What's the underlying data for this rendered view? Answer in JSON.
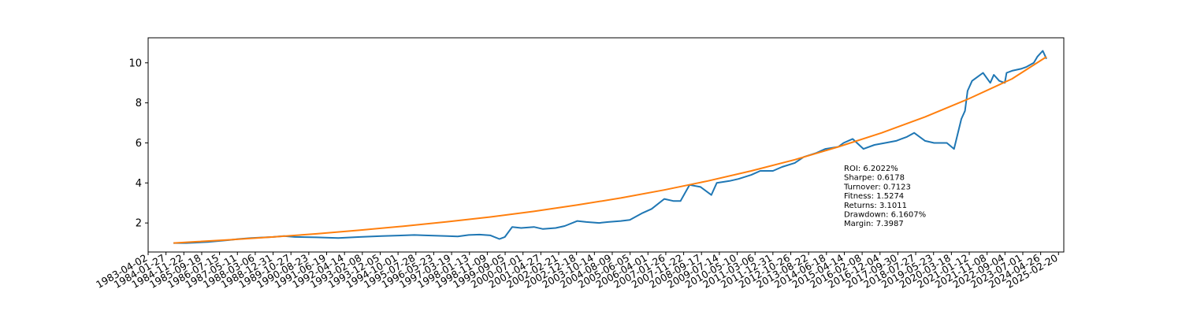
{
  "chart_data": {
    "type": "line",
    "xlim": [
      "1983-04-02",
      "2025-05-20"
    ],
    "ylim": [
      0.55,
      11.25
    ],
    "y_ticks": [
      2,
      4,
      6,
      8,
      10
    ],
    "x_ticks": [
      "1983-04-02",
      "1984-01-27",
      "1984-11-22",
      "1985-09-18",
      "1986-07-15",
      "1987-05-11",
      "1988-03-06",
      "1988-12-31",
      "1989-10-27",
      "1990-08-23",
      "1991-06-19",
      "1992-04-14",
      "1993-02-08",
      "1993-12-05",
      "1994-10-01",
      "1995-07-28",
      "1996-05-23",
      "1997-03-19",
      "1998-01-13",
      "1998-11-09",
      "1999-09-05",
      "2000-07-01",
      "2001-04-27",
      "2002-02-21",
      "2002-12-18",
      "2003-10-14",
      "2004-08-09",
      "2005-06-05",
      "2006-04-01",
      "2007-01-26",
      "2007-11-22",
      "2008-09-17",
      "2009-07-14",
      "2010-05-10",
      "2011-03-06",
      "2011-12-31",
      "2012-10-26",
      "2013-08-22",
      "2014-06-18",
      "2015-04-14",
      "2016-02-08",
      "2016-12-04",
      "2017-09-30",
      "2018-07-27",
      "2019-05-23",
      "2020-03-18",
      "2021-01-12",
      "2021-11-08",
      "2022-09-04",
      "2023-07-01",
      "2024-04-26",
      "2025-02-20"
    ],
    "grid": false,
    "series": [
      {
        "color": "#1f77b4",
        "x": [
          "1984-06-01",
          "1985-01-01",
          "1986-01-01",
          "1987-01-01",
          "1987-06-01",
          "1988-01-01",
          "1989-01-01",
          "1989-07-01",
          "1990-01-01",
          "1991-01-01",
          "1992-01-01",
          "1993-01-01",
          "1994-01-01",
          "1995-01-01",
          "1995-07-01",
          "1996-01-01",
          "1997-01-01",
          "1997-07-01",
          "1998-01-01",
          "1998-07-01",
          "1999-01-01",
          "1999-06-01",
          "1999-09-01",
          "2000-01-01",
          "2000-06-01",
          "2001-01-01",
          "2001-06-01",
          "2002-01-01",
          "2002-06-01",
          "2003-01-01",
          "2003-06-01",
          "2004-01-01",
          "2004-06-01",
          "2005-01-01",
          "2005-06-01",
          "2006-01-01",
          "2006-06-01",
          "2007-01-01",
          "2007-06-01",
          "2007-10-01",
          "2008-03-01",
          "2008-09-01",
          "2009-03-01",
          "2009-06-01",
          "2010-01-01",
          "2010-06-01",
          "2011-01-01",
          "2011-06-01",
          "2012-01-01",
          "2012-06-01",
          "2013-01-01",
          "2013-06-01",
          "2014-01-01",
          "2014-06-01",
          "2015-01-01",
          "2015-04-01",
          "2015-09-01",
          "2016-03-01",
          "2016-09-01",
          "2017-03-01",
          "2017-09-01",
          "2018-03-01",
          "2018-07-01",
          "2019-01-01",
          "2019-06-01",
          "2020-01-01",
          "2020-05-01",
          "2020-09-01",
          "2020-11-01",
          "2020-12-15",
          "2021-03-01",
          "2021-06-01",
          "2021-09-01",
          "2022-01-01",
          "2022-03-01",
          "2022-06-01",
          "2022-09-01",
          "2022-10-01",
          "2023-01-01",
          "2023-06-01",
          "2023-09-01",
          "2024-01-01",
          "2024-03-01",
          "2024-06-01",
          "2024-08-01"
        ],
        "y": [
          1.0,
          1.0,
          1.05,
          1.15,
          1.2,
          1.25,
          1.3,
          1.35,
          1.3,
          1.28,
          1.25,
          1.3,
          1.35,
          1.38,
          1.4,
          1.38,
          1.35,
          1.33,
          1.4,
          1.42,
          1.38,
          1.2,
          1.3,
          1.8,
          1.75,
          1.8,
          1.7,
          1.75,
          1.85,
          2.1,
          2.05,
          2.0,
          2.05,
          2.1,
          2.15,
          2.5,
          2.7,
          3.2,
          3.1,
          3.1,
          3.9,
          3.8,
          3.4,
          4.0,
          4.1,
          4.2,
          4.4,
          4.6,
          4.6,
          4.8,
          5.0,
          5.3,
          5.5,
          5.7,
          5.8,
          6.0,
          6.2,
          5.7,
          5.9,
          6.0,
          6.1,
          6.3,
          6.5,
          6.1,
          6.0,
          6.0,
          5.7,
          7.2,
          7.6,
          8.6,
          9.1,
          9.3,
          9.5,
          9.0,
          9.4,
          9.1,
          9.0,
          9.5,
          9.6,
          9.7,
          9.8,
          10.0,
          10.3,
          10.6,
          10.2
        ]
      },
      {
        "color": "#ff7f0e",
        "x": [
          "1984-06-01",
          "1985-06-01",
          "1987-01-01",
          "1989-01-01",
          "1991-01-01",
          "1993-01-01",
          "1995-01-01",
          "1997-01-01",
          "1999-01-01",
          "2001-01-01",
          "2003-01-01",
          "2005-01-01",
          "2007-01-01",
          "2009-01-01",
          "2011-01-01",
          "2013-01-01",
          "2015-01-01",
          "2017-01-01",
          "2019-01-01",
          "2021-01-01",
          "2023-01-01",
          "2024-08-01"
        ],
        "y": [
          1.0,
          1.06,
          1.16,
          1.3,
          1.46,
          1.64,
          1.84,
          2.06,
          2.3,
          2.58,
          2.9,
          3.25,
          3.65,
          4.1,
          4.6,
          5.16,
          5.8,
          6.5,
          7.3,
          8.2,
          9.2,
          10.3
        ]
      }
    ]
  },
  "stats_box": {
    "lines": [
      "ROI: 6.2022%",
      "Sharpe: 0.6178",
      "Turnover: 0.7123",
      "Fitness: 1.5274",
      "Returns: 3.1011",
      "Drawdown: 6.1607%",
      "Margin: 7.3987"
    ]
  }
}
